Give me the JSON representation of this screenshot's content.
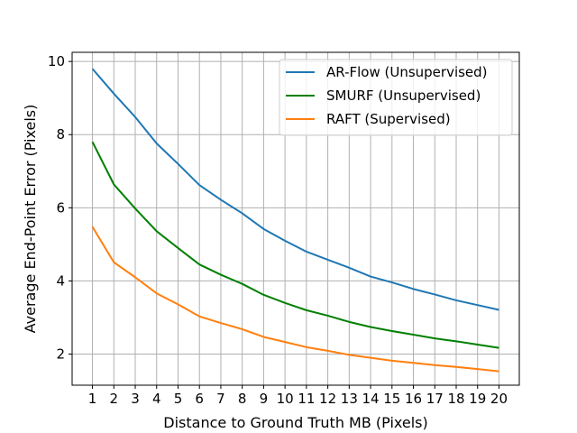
{
  "chart_data": {
    "type": "line",
    "title": "",
    "xlabel": "Distance to Ground Truth MB (Pixels)",
    "ylabel": "Average End-Point Error (Pixels)",
    "x": [
      1,
      2,
      3,
      4,
      5,
      6,
      7,
      8,
      9,
      10,
      11,
      12,
      13,
      14,
      15,
      16,
      17,
      18,
      19,
      20
    ],
    "xlim": [
      0.05,
      20.95
    ],
    "ylim": [
      1.15,
      10.25
    ],
    "yticks": [
      2,
      4,
      6,
      8,
      10
    ],
    "grid": true,
    "legend_position": "top-right",
    "series": [
      {
        "name": "AR-Flow (Unsupervised)",
        "color": "#1f77b4",
        "values": [
          9.8,
          9.12,
          8.48,
          7.76,
          7.2,
          6.62,
          6.22,
          5.85,
          5.42,
          5.1,
          4.8,
          4.58,
          4.36,
          4.12,
          3.96,
          3.78,
          3.63,
          3.47,
          3.34,
          3.21
        ]
      },
      {
        "name": "SMURF (Unsupervised)",
        "color": "#008000",
        "values": [
          7.8,
          6.64,
          5.98,
          5.36,
          4.9,
          4.45,
          4.17,
          3.92,
          3.62,
          3.4,
          3.2,
          3.05,
          2.88,
          2.74,
          2.63,
          2.53,
          2.43,
          2.35,
          2.26,
          2.17
        ]
      },
      {
        "name": "RAFT (Supervised)",
        "color": "#ff7f0e",
        "values": [
          5.48,
          4.51,
          4.1,
          3.66,
          3.36,
          3.03,
          2.85,
          2.68,
          2.47,
          2.33,
          2.19,
          2.09,
          1.98,
          1.9,
          1.82,
          1.76,
          1.7,
          1.65,
          1.59,
          1.53
        ]
      }
    ]
  }
}
